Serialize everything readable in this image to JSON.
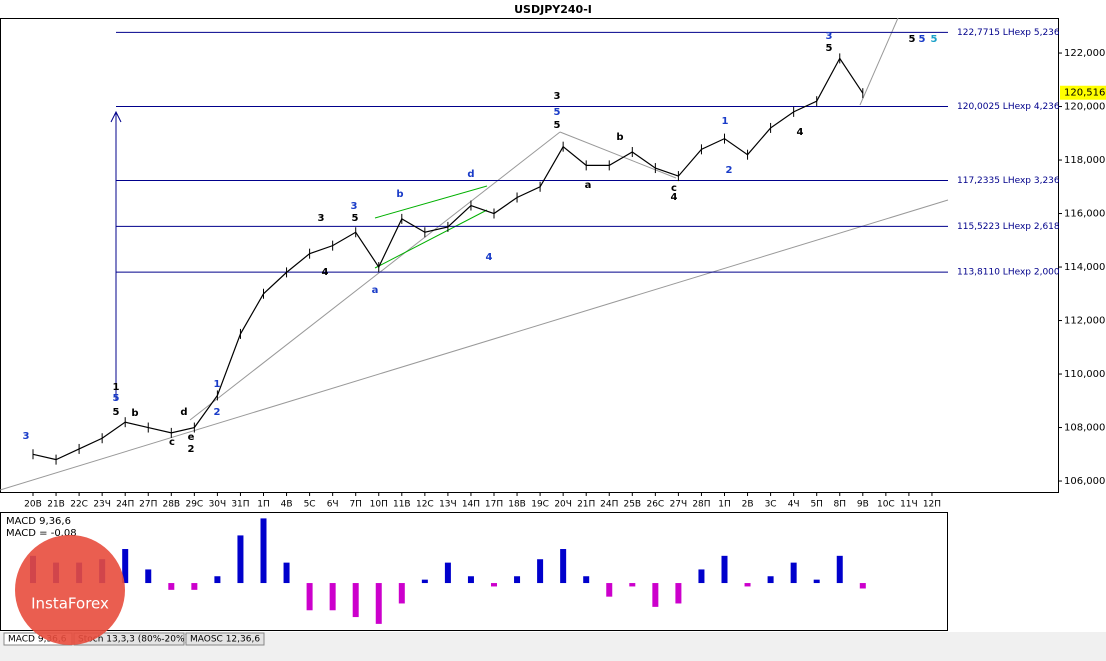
{
  "chart_data": {
    "type": "line",
    "title": "USDJPY240-I",
    "categories": [
      "20В",
      "21В",
      "22С",
      "23Ч",
      "24П",
      "27П",
      "28В",
      "29С",
      "30Ч",
      "31П",
      "1П",
      "4В",
      "5С",
      "6Ч",
      "7П",
      "10П",
      "11В",
      "12С",
      "13Ч",
      "14П",
      "17П",
      "18В",
      "19С",
      "20Ч",
      "21П",
      "24П",
      "25В",
      "26С",
      "27Ч",
      "28П",
      "1П",
      "2В",
      "3С",
      "4Ч",
      "5П",
      "8П",
      "9В",
      "10С",
      "11Ч",
      "12П"
    ],
    "series": [
      {
        "name": "USDJPY240-I",
        "color": "#000000",
        "values": [
          107.0,
          106.8,
          107.2,
          107.6,
          108.2,
          108.0,
          107.8,
          108.0,
          109.2,
          111.5,
          113.0,
          113.8,
          114.5,
          114.8,
          115.3,
          114.0,
          115.8,
          115.3,
          115.5,
          116.3,
          116.0,
          116.6,
          117.0,
          118.5,
          117.8,
          117.8,
          118.3,
          117.7,
          117.4,
          118.4,
          118.8,
          118.2,
          119.2,
          119.8,
          120.2,
          121.8,
          120.5,
          null,
          null,
          null
        ]
      }
    ],
    "ylim": [
      105.59,
      123.31
    ],
    "yticks": [
      {
        "value": 106,
        "label": "106,000"
      },
      {
        "value": 108,
        "label": "108,000"
      },
      {
        "value": 110,
        "label": "110,000"
      },
      {
        "value": 112,
        "label": "112,000"
      },
      {
        "value": 114,
        "label": "114,000"
      },
      {
        "value": 116,
        "label": "116,000"
      },
      {
        "value": 118,
        "label": "118,000"
      },
      {
        "value": 120,
        "label": "120,000"
      },
      {
        "value": 122,
        "label": "122,000"
      }
    ],
    "levels": [
      {
        "value": 122.7715,
        "label": "122,7715 LHexp 5,236"
      },
      {
        "value": 120.0025,
        "label": "120,0025 LHexp 4,236"
      },
      {
        "value": 117.2335,
        "label": "117,2335 LHexp 3,236"
      },
      {
        "value": 115.5223,
        "label": "115,5223 LHexp 2,618"
      },
      {
        "value": 113.811,
        "label": "113,8110 LHexp 2,000"
      }
    ],
    "last_price": {
      "value": 120.516,
      "label": "120,516"
    },
    "annotations": [
      "3",
      "1",
      "5",
      "5",
      "b",
      "d",
      "c",
      "e",
      "2",
      "1",
      "2",
      "3",
      "3",
      "5",
      "4",
      "a",
      "b",
      "d",
      "4",
      "3",
      "5",
      "5",
      "b",
      "a",
      "c",
      "4",
      "1",
      "2",
      "3",
      "5",
      "4",
      "5",
      "5",
      "5"
    ],
    "macd": {
      "title": "MACD 9,36,6",
      "current_label": "MACD = -0.08",
      "current": -0.08,
      "color": "#0000cc",
      "negative_color": "#cc00cc",
      "ylim": [
        -0.69,
        1.0
      ],
      "values": [
        0.4,
        0.3,
        0.3,
        0.35,
        0.5,
        0.2,
        -0.1,
        -0.1,
        0.1,
        0.7,
        0.95,
        0.3,
        -0.4,
        -0.4,
        -0.5,
        -0.6,
        -0.3,
        0.05,
        0.3,
        0.1,
        -0.05,
        0.1,
        0.35,
        0.5,
        0.1,
        -0.2,
        -0.05,
        -0.35,
        -0.3,
        0.2,
        0.4,
        -0.05,
        0.1,
        0.3,
        0.05,
        0.4,
        -0.08,
        null,
        null,
        null
      ]
    },
    "tabs": [
      "MACD 9,36,6",
      "Stoch 13,3,3 (80%-20%)",
      "MAOSC 12,36,6"
    ],
    "watermark": "InstaForex"
  }
}
